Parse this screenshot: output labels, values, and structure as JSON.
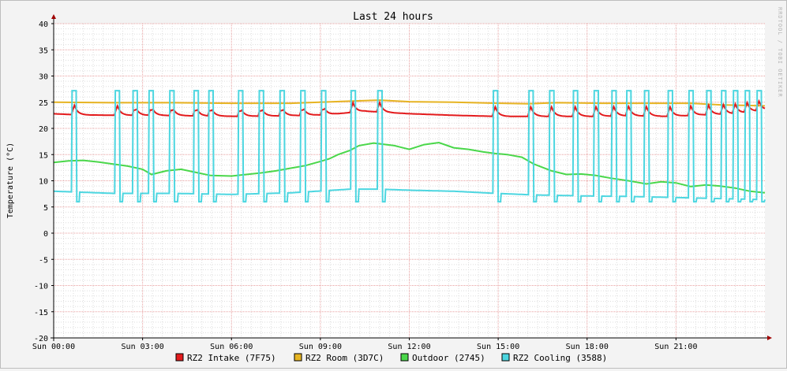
{
  "chart_data": {
    "type": "line",
    "title": "Last 24 hours",
    "ylabel": "Temperature (°C)",
    "watermark": "RRDTOOL / TOBI OETIKER",
    "ylim": [
      -20,
      40
    ],
    "xlim_hours": [
      0,
      24
    ],
    "yticks": [
      -20,
      -15,
      -10,
      -5,
      0,
      5,
      10,
      15,
      20,
      25,
      30,
      35,
      40
    ],
    "xticks": [
      {
        "hour": 0,
        "label": "Sun 00:00"
      },
      {
        "hour": 3,
        "label": "Sun 03:00"
      },
      {
        "hour": 6,
        "label": "Sun 06:00"
      },
      {
        "hour": 9,
        "label": "Sun 09:00"
      },
      {
        "hour": 12,
        "label": "Sun 12:00"
      },
      {
        "hour": 15,
        "label": "Sun 15:00"
      },
      {
        "hour": 18,
        "label": "Sun 18:00"
      },
      {
        "hour": 21,
        "label": "Sun 21:00"
      }
    ],
    "grid": true,
    "legend_position": "bottom",
    "colors": {
      "background": "#f3f3f3",
      "canvas": "#ffffff",
      "major_grid": "#e8a0a0",
      "minor_grid": "#dddddd",
      "axis": "#000000",
      "arrow": "#a00000"
    },
    "cooling_spikes_hours": [
      0.7,
      2.15,
      2.75,
      3.3,
      4.0,
      4.8,
      5.3,
      6.3,
      7.0,
      7.7,
      8.4,
      9.1,
      10.1,
      11.0,
      14.9,
      16.1,
      16.8,
      17.6,
      18.3,
      18.9,
      19.4,
      20.0,
      20.8,
      21.5,
      22.1,
      22.6,
      23.0,
      23.4,
      23.8
    ],
    "series": [
      {
        "name": "RZ2 Intake (7F75)",
        "color": "#e31a1c",
        "points": [
          [
            0,
            22.8
          ],
          [
            0.7,
            22.6
          ],
          [
            2.2,
            22.5
          ],
          [
            3.2,
            22.5
          ],
          [
            4.8,
            22.4
          ],
          [
            6.3,
            22.3
          ],
          [
            7.7,
            22.4
          ],
          [
            9.2,
            22.6
          ],
          [
            10.5,
            23.3
          ],
          [
            12.0,
            22.8
          ],
          [
            13.5,
            22.5
          ],
          [
            14.9,
            22.3
          ],
          [
            15.8,
            22.3
          ],
          [
            16.8,
            22.3
          ],
          [
            18.3,
            22.3
          ],
          [
            19.4,
            22.4
          ],
          [
            20.8,
            22.3
          ],
          [
            22.0,
            22.6
          ],
          [
            23.0,
            22.8
          ],
          [
            24.0,
            23.5
          ]
        ]
      },
      {
        "name": "RZ2 Room (3D7C)",
        "color": "#e6b422",
        "points": [
          [
            0,
            25.0
          ],
          [
            2.0,
            24.9
          ],
          [
            4.0,
            24.9
          ],
          [
            6.0,
            24.8
          ],
          [
            8.0,
            24.8
          ],
          [
            10.0,
            25.2
          ],
          [
            11.0,
            25.4
          ],
          [
            12.0,
            25.1
          ],
          [
            13.5,
            25.0
          ],
          [
            15.0,
            24.8
          ],
          [
            16.0,
            24.7
          ],
          [
            17.0,
            24.9
          ],
          [
            18.5,
            24.8
          ],
          [
            20.0,
            24.8
          ],
          [
            21.5,
            24.8
          ],
          [
            22.5,
            24.5
          ],
          [
            24.0,
            24.3
          ]
        ]
      },
      {
        "name": "Outdoor (2745)",
        "color": "#4ad74a",
        "points": [
          [
            0,
            13.5
          ],
          [
            0.5,
            13.8
          ],
          [
            1.0,
            13.9
          ],
          [
            1.5,
            13.6
          ],
          [
            2.0,
            13.2
          ],
          [
            2.5,
            12.8
          ],
          [
            3.0,
            12.2
          ],
          [
            3.3,
            11.2
          ],
          [
            3.8,
            11.9
          ],
          [
            4.3,
            12.2
          ],
          [
            4.8,
            11.6
          ],
          [
            5.3,
            11.0
          ],
          [
            6.0,
            10.9
          ],
          [
            6.5,
            11.2
          ],
          [
            7.0,
            11.5
          ],
          [
            7.5,
            11.9
          ],
          [
            8.0,
            12.4
          ],
          [
            8.5,
            12.9
          ],
          [
            9.0,
            13.7
          ],
          [
            9.3,
            14.2
          ],
          [
            9.6,
            15.0
          ],
          [
            10.0,
            15.8
          ],
          [
            10.3,
            16.7
          ],
          [
            10.8,
            17.2
          ],
          [
            11.5,
            16.7
          ],
          [
            12.0,
            16.0
          ],
          [
            12.5,
            16.9
          ],
          [
            13.0,
            17.3
          ],
          [
            13.5,
            16.3
          ],
          [
            14.0,
            16.0
          ],
          [
            14.5,
            15.5
          ],
          [
            14.9,
            15.2
          ],
          [
            15.3,
            15.0
          ],
          [
            15.8,
            14.5
          ],
          [
            16.2,
            13.2
          ],
          [
            16.8,
            11.9
          ],
          [
            17.3,
            11.2
          ],
          [
            17.8,
            11.3
          ],
          [
            18.3,
            11.0
          ],
          [
            18.8,
            10.5
          ],
          [
            19.4,
            10.0
          ],
          [
            20.0,
            9.4
          ],
          [
            20.5,
            9.8
          ],
          [
            21.0,
            9.6
          ],
          [
            21.5,
            8.9
          ],
          [
            22.0,
            9.2
          ],
          [
            22.5,
            9.0
          ],
          [
            23.0,
            8.6
          ],
          [
            23.5,
            8.0
          ],
          [
            24.0,
            7.7
          ]
        ]
      },
      {
        "name": "RZ2 Cooling (3588)",
        "color": "#4cd6e0",
        "points": [
          [
            0,
            8.0
          ],
          [
            2.0,
            7.6
          ],
          [
            4.0,
            7.6
          ],
          [
            6.0,
            7.4
          ],
          [
            8.0,
            7.7
          ],
          [
            10.0,
            8.4
          ],
          [
            11.0,
            8.4
          ],
          [
            12.0,
            8.2
          ],
          [
            13.5,
            8.0
          ],
          [
            14.9,
            7.6
          ],
          [
            16.2,
            7.3
          ],
          [
            18.0,
            7.1
          ],
          [
            19.5,
            7.0
          ],
          [
            21.0,
            6.8
          ],
          [
            22.5,
            6.6
          ],
          [
            24.0,
            6.4
          ]
        ]
      }
    ]
  }
}
